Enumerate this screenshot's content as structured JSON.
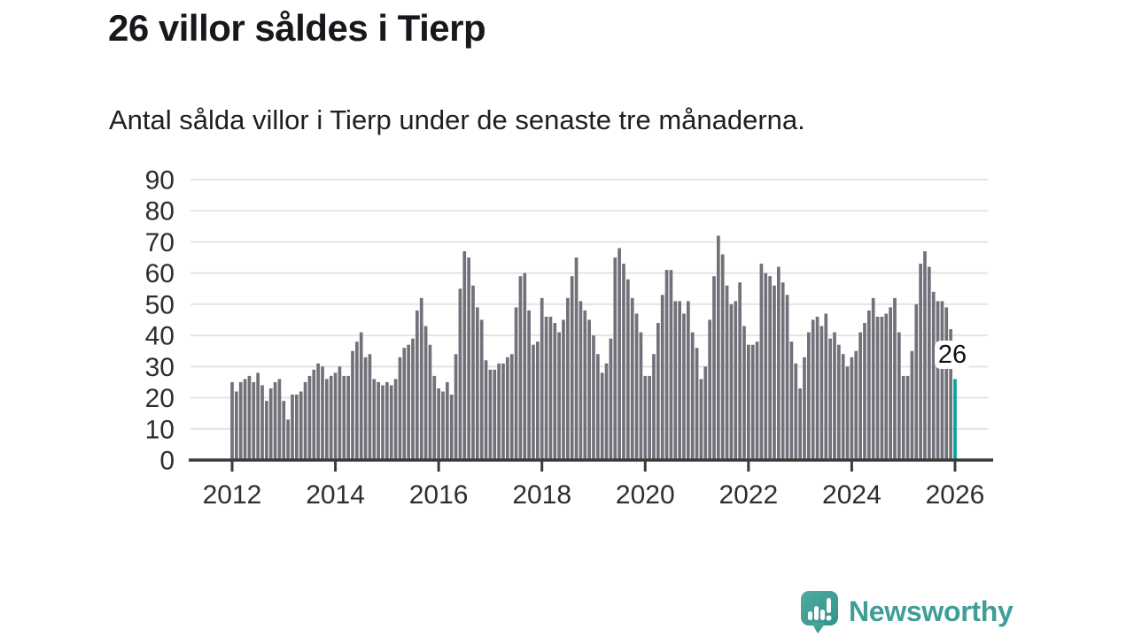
{
  "header": {
    "title": "26 villor såldes i Tierp",
    "subtitle": "Antal sålda villor i Tierp under de senaste tre månaderna."
  },
  "chart_data": {
    "type": "bar",
    "title": "26 villor såldes i Tierp",
    "subtitle": "Antal sålda villor i Tierp under de senaste tre månaderna.",
    "x_start": "2012-01",
    "frequency": "monthly-rolling-3-months",
    "values": [
      25,
      22,
      25,
      26,
      27,
      25,
      28,
      24,
      19,
      23,
      25,
      26,
      19,
      13,
      21,
      21,
      22,
      25,
      27,
      29,
      31,
      30,
      26,
      27,
      28,
      30,
      27,
      27,
      35,
      38,
      41,
      33,
      34,
      26,
      25,
      24,
      25,
      24,
      26,
      33,
      36,
      37,
      39,
      48,
      52,
      43,
      37,
      27,
      23,
      22,
      25,
      21,
      34,
      55,
      67,
      65,
      56,
      49,
      45,
      32,
      29,
      29,
      31,
      31,
      33,
      34,
      49,
      59,
      60,
      48,
      37,
      38,
      52,
      46,
      46,
      44,
      41,
      45,
      52,
      59,
      65,
      51,
      48,
      45,
      40,
      34,
      28,
      31,
      39,
      65,
      68,
      63,
      58,
      52,
      47,
      41,
      27,
      27,
      34,
      44,
      53,
      61,
      61,
      51,
      51,
      47,
      51,
      41,
      36,
      26,
      30,
      45,
      59,
      72,
      66,
      56,
      50,
      51,
      57,
      43,
      37,
      37,
      38,
      63,
      60,
      59,
      56,
      62,
      57,
      53,
      38,
      31,
      23,
      33,
      41,
      45,
      46,
      43,
      47,
      39,
      41,
      37,
      34,
      30,
      33,
      35,
      41,
      44,
      48,
      52,
      46,
      46,
      47,
      49,
      52,
      41,
      27,
      27,
      35,
      50,
      63,
      67,
      62,
      54,
      51,
      51,
      49,
      42,
      26
    ],
    "highlight_last_value": 26,
    "annotation": {
      "label": "26"
    },
    "ylim": [
      0,
      90
    ],
    "yticks": [
      0,
      10,
      20,
      30,
      40,
      50,
      60,
      70,
      80,
      90
    ],
    "xticks": [
      2012,
      2014,
      2016,
      2018,
      2020,
      2022,
      2024,
      2026
    ],
    "grid": true,
    "legend": "none",
    "colors": {
      "bar": "#71717a",
      "highlight": "#00a49c",
      "grid": "#e4e4e4",
      "axis": "#3a3a3c",
      "tick_text": "#2e2e30"
    }
  },
  "footer": {
    "brand": "Newsworthy",
    "brand_color": "#3f9e97"
  }
}
